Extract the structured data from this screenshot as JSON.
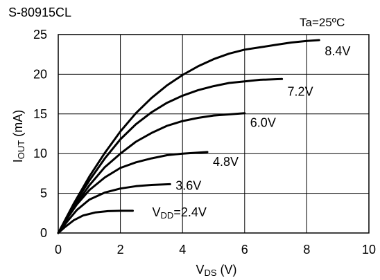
{
  "chart_data": {
    "type": "line",
    "title": "S-80915CL",
    "condition": "Ta=25ºC",
    "xlabel": {
      "main": "V",
      "sub": "DS",
      "unit": " (V)"
    },
    "ylabel": {
      "main": "I",
      "sub": "OUT",
      "unit": " (mA)"
    },
    "xlim": [
      0,
      10
    ],
    "ylim": [
      0,
      25
    ],
    "xticks": [
      0,
      2,
      4,
      6,
      8,
      10
    ],
    "yticks": [
      0,
      5,
      10,
      15,
      20,
      25
    ],
    "grid": true,
    "series": [
      {
        "name": "V",
        "name_sub": "DD",
        "name_rest": "=2.4V",
        "x": [
          0,
          0.2,
          0.5,
          0.8,
          1.2,
          1.6,
          2.0,
          2.4
        ],
        "y": [
          0,
          0.7,
          1.6,
          2.2,
          2.6,
          2.75,
          2.8,
          2.8
        ]
      },
      {
        "name": "3.6V",
        "x": [
          0,
          0.3,
          0.6,
          1.0,
          1.5,
          2.0,
          2.5,
          3.0,
          3.6
        ],
        "y": [
          0,
          1.5,
          2.9,
          4.2,
          5.1,
          5.6,
          5.9,
          6.05,
          6.15
        ]
      },
      {
        "name": "4.8V",
        "x": [
          0,
          0.3,
          0.6,
          1.0,
          1.5,
          2.0,
          2.5,
          3.0,
          3.5,
          4.0,
          4.8
        ],
        "y": [
          0,
          1.9,
          3.6,
          5.4,
          7.0,
          8.2,
          8.9,
          9.4,
          9.8,
          10.0,
          10.2
        ]
      },
      {
        "name": "6.0V",
        "x": [
          0,
          0.5,
          1.0,
          1.5,
          2.0,
          2.5,
          3.0,
          3.5,
          4.0,
          4.5,
          5.0,
          6.0
        ],
        "y": [
          0,
          3.2,
          6.0,
          8.3,
          10.0,
          11.5,
          12.6,
          13.5,
          14.1,
          14.5,
          14.8,
          15.1
        ]
      },
      {
        "name": "7.2V",
        "x": [
          0,
          0.5,
          1.0,
          1.5,
          2.0,
          2.5,
          3.0,
          3.5,
          4.0,
          4.5,
          5.0,
          5.5,
          6.0,
          6.5,
          7.2
        ],
        "y": [
          0,
          3.5,
          6.6,
          9.4,
          11.8,
          13.7,
          15.2,
          16.4,
          17.3,
          18.0,
          18.5,
          18.9,
          19.1,
          19.3,
          19.4
        ]
      },
      {
        "name": "8.4V",
        "x": [
          0,
          0.5,
          1.0,
          1.5,
          2.0,
          2.5,
          3.0,
          3.5,
          4.0,
          4.5,
          5.0,
          5.5,
          6.0,
          6.5,
          7.0,
          7.5,
          8.0,
          8.4
        ],
        "y": [
          0,
          3.7,
          7.1,
          10.1,
          12.8,
          15.1,
          17.0,
          18.6,
          19.9,
          21.0,
          21.9,
          22.6,
          23.1,
          23.4,
          23.7,
          24.0,
          24.2,
          24.3
        ]
      }
    ]
  }
}
